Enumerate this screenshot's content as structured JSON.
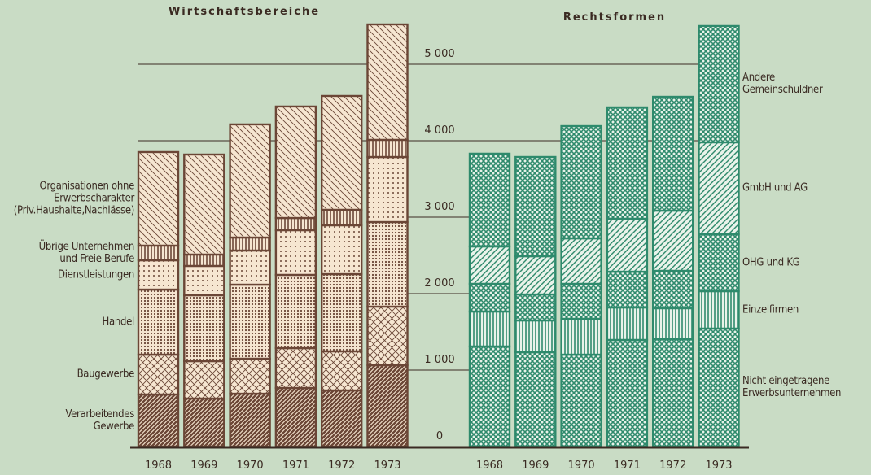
{
  "chart_data": [
    {
      "type": "bar",
      "stacked": true,
      "title": "Wirtschaftsbereiche",
      "categories": [
        "1968",
        "1969",
        "1970",
        "1971",
        "1972",
        "1973"
      ],
      "ylim": [
        0,
        5840
      ],
      "yticks": [
        0,
        {
          "value": 1000,
          "label": "1 000"
        },
        {
          "value": 2000,
          "label": "2 000"
        },
        {
          "value": 3000,
          "label": "3 000"
        },
        {
          "value": 4000,
          "label": "4 000"
        },
        {
          "value": 5000,
          "label": "5 000"
        }
      ],
      "series": [
        {
          "name": "Verarbeitendes\nGewerbe",
          "color": "#6b4636",
          "values": [
            681,
            628,
            691,
            766,
            734,
            1064
          ]
        },
        {
          "name": "Baugewerbe",
          "color": "#6b4636",
          "values": [
            521,
            489,
            458,
            521,
            511,
            766
          ]
        },
        {
          "name": "Handel",
          "color": "#6b4636",
          "values": [
            851,
            862,
            968,
            958,
            1010,
            1106
          ]
        },
        {
          "name": "Dienstleistungen",
          "color": "#6b4636",
          "values": [
            383,
            383,
            447,
            585,
            639,
            851
          ]
        },
        {
          "name": "Übrige Unternehmen\nund Freie Berufe",
          "color": "#6b4636",
          "values": [
            192,
            149,
            170,
            159,
            202,
            224
          ]
        },
        {
          "name": "Organisationen ohne\nErwerbscharakter\n(Priv.Haushalte,Nachlässe)",
          "color": "#6b4636",
          "values": [
            1223,
            1308,
            1479,
            1458,
            1489,
            1510
          ]
        }
      ]
    },
    {
      "type": "bar",
      "stacked": true,
      "title": "Rechtsformen",
      "categories": [
        "1968",
        "1969",
        "1970",
        "1971",
        "1972",
        "1973"
      ],
      "ylim": [
        0,
        5840
      ],
      "series": [
        {
          "name": "Nicht eingetragene\nErwerbsunternehmen",
          "color": "#2e8a6c",
          "values": [
            1309,
            1234,
            1202,
            1394,
            1404,
            1543
          ]
        },
        {
          "name": "Einzelfirmen",
          "color": "#2e8a6c",
          "values": [
            457,
            415,
            468,
            425,
            405,
            489
          ]
        },
        {
          "name": "OHG und KG",
          "color": "#2e8a6c",
          "values": [
            362,
            340,
            458,
            468,
            489,
            745
          ]
        },
        {
          "name": "GmbH und AG",
          "color": "#2e8a6c",
          "values": [
            489,
            500,
            595,
            692,
            787,
            1202
          ]
        },
        {
          "name": "Andere\nGemeinschuldner",
          "color": "#2e8a6c",
          "values": [
            1213,
            1298,
            1468,
            1457,
            1489,
            1521
          ]
        }
      ]
    }
  ]
}
